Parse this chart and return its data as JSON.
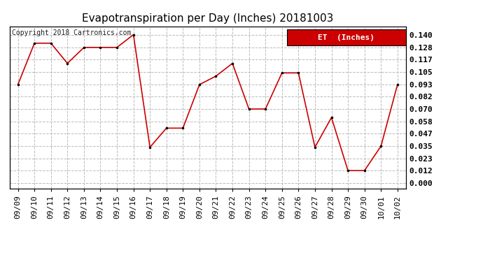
{
  "title": "Evapotranspiration per Day (Inches) 20181003",
  "copyright_text": "Copyright 2018 Cartronics.com",
  "legend_label": "ET  (Inches)",
  "legend_bg": "#cc0000",
  "legend_text_color": "#ffffff",
  "x_labels": [
    "09/09",
    "09/10",
    "09/11",
    "09/12",
    "09/13",
    "09/14",
    "09/15",
    "09/16",
    "09/17",
    "09/18",
    "09/19",
    "09/20",
    "09/21",
    "09/22",
    "09/23",
    "09/24",
    "09/25",
    "09/26",
    "09/27",
    "09/28",
    "09/29",
    "09/30",
    "10/01",
    "10/02"
  ],
  "y_values": [
    0.093,
    0.132,
    0.132,
    0.113,
    0.128,
    0.128,
    0.128,
    0.14,
    0.034,
    0.052,
    0.052,
    0.093,
    0.101,
    0.113,
    0.07,
    0.07,
    0.104,
    0.104,
    0.034,
    0.062,
    0.012,
    0.012,
    0.035,
    0.093
  ],
  "y_ticks": [
    0.0,
    0.012,
    0.023,
    0.035,
    0.047,
    0.058,
    0.07,
    0.082,
    0.093,
    0.105,
    0.117,
    0.128,
    0.14
  ],
  "line_color": "#cc0000",
  "marker_color": "#000000",
  "bg_color": "#ffffff",
  "grid_color": "#bbbbbb",
  "title_fontsize": 11,
  "tick_fontsize": 8,
  "copyright_fontsize": 7
}
